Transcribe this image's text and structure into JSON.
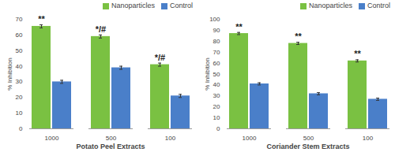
{
  "chart_data": [
    {
      "type": "bar",
      "categories": [
        "1000",
        "500",
        "100"
      ],
      "x_label": "Potato Peel Extracts",
      "y_label": "% Inhibition",
      "series": [
        {
          "name": "Nanoparticles",
          "color": "#7ac142",
          "values": [
            65.5,
            59,
            41
          ],
          "errors": [
            1,
            1,
            1
          ]
        },
        {
          "name": "Control",
          "color": "#4a7fc9",
          "values": [
            30,
            39,
            21
          ],
          "errors": [
            1,
            1,
            1
          ]
        }
      ],
      "annotations": [
        "**",
        "*/#",
        "*/#"
      ],
      "ylim": [
        0,
        70
      ],
      "yticks": [
        0,
        10,
        20,
        30,
        40,
        50,
        60,
        70
      ],
      "grid": false,
      "legend": "top-right"
    },
    {
      "type": "bar",
      "categories": [
        "1000",
        "500",
        "100"
      ],
      "x_label": "Coriander Stem Extracts",
      "y_label": "% Inhibition",
      "series": [
        {
          "name": "Nanoparticles",
          "color": "#7ac142",
          "values": [
            87,
            78,
            62
          ],
          "errors": [
            1,
            1,
            1
          ]
        },
        {
          "name": "Control",
          "color": "#4a7fc9",
          "values": [
            41,
            32,
            27
          ],
          "errors": [
            1,
            1,
            1
          ]
        }
      ],
      "annotations": [
        "**",
        "**",
        "**"
      ],
      "ylim": [
        0,
        100
      ],
      "yticks": [
        0,
        10,
        20,
        30,
        40,
        50,
        60,
        70,
        80,
        90,
        100
      ],
      "grid": false,
      "legend": "top-right"
    }
  ]
}
